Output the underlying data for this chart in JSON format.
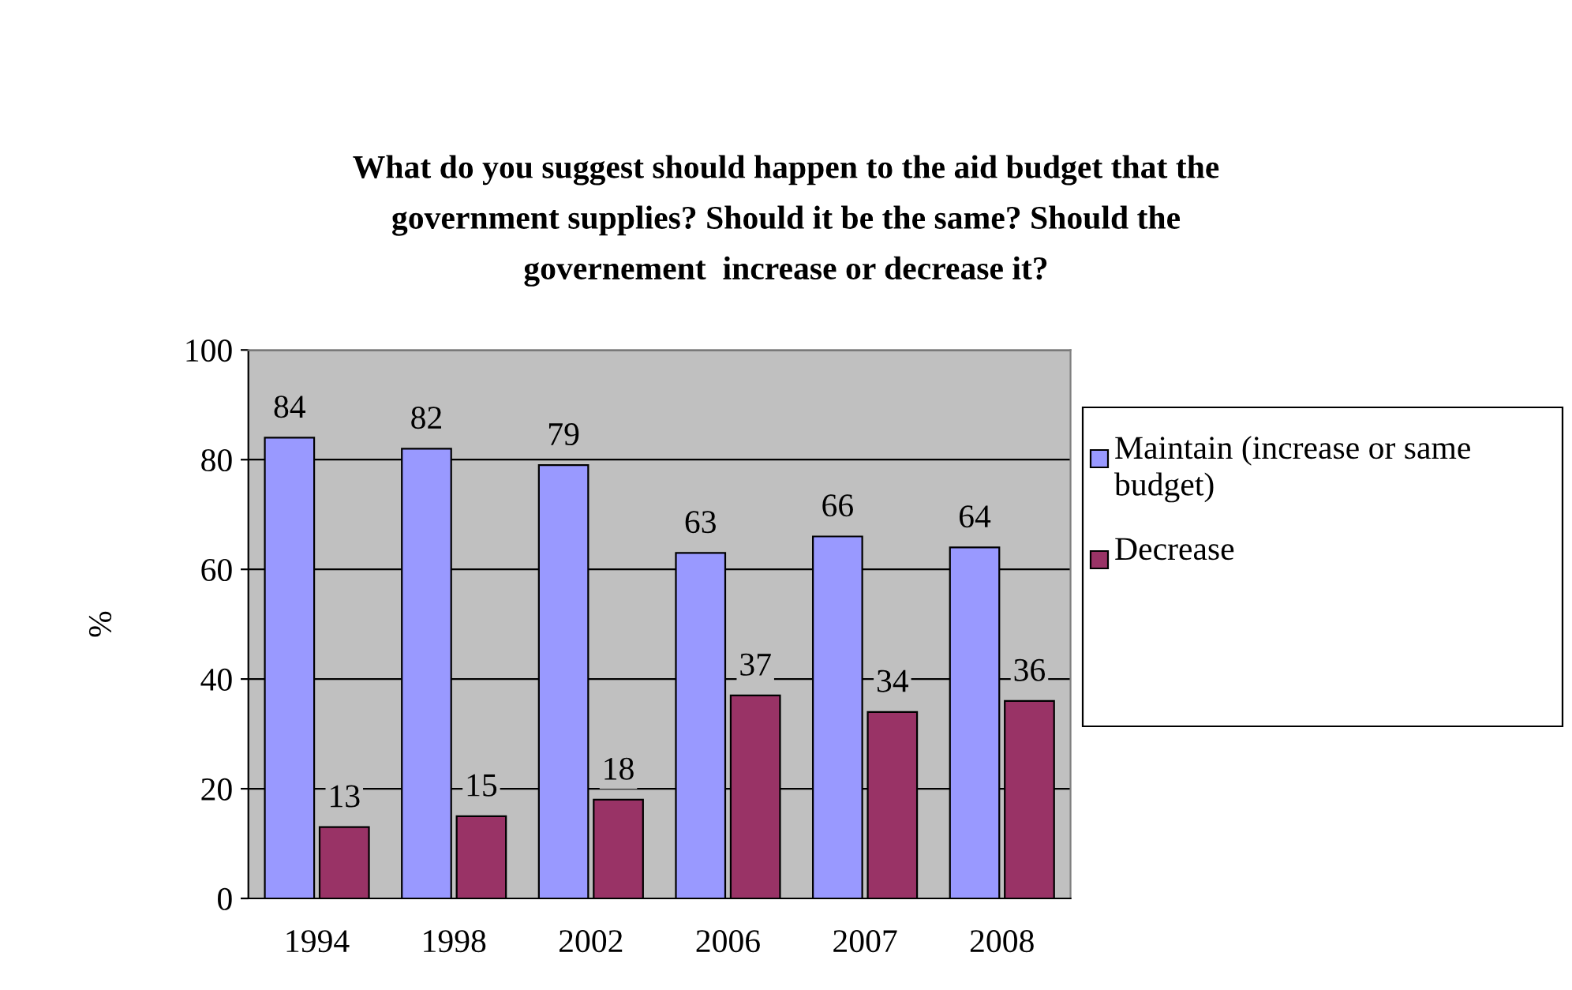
{
  "chart_data": {
    "type": "bar",
    "title": "What do you suggest should happen to the aid budget that the government supplies? Should it be the same? Should the governement  increase or decrease it?",
    "ylabel": "%",
    "categories": [
      "1994",
      "1998",
      "2002",
      "2006",
      "2007",
      "2008"
    ],
    "series": [
      {
        "name": "Maintain (increase or same budget)",
        "color": "#9999ff",
        "values": [
          84,
          82,
          79,
          63,
          66,
          64
        ]
      },
      {
        "name": "Decrease",
        "color": "#993366",
        "values": [
          13,
          15,
          18,
          37,
          34,
          36
        ]
      }
    ],
    "ylim": [
      0,
      100
    ],
    "yticks": [
      0,
      20,
      40,
      60,
      80,
      100
    ],
    "grid": "y",
    "legend": "right",
    "data_labels": true
  }
}
